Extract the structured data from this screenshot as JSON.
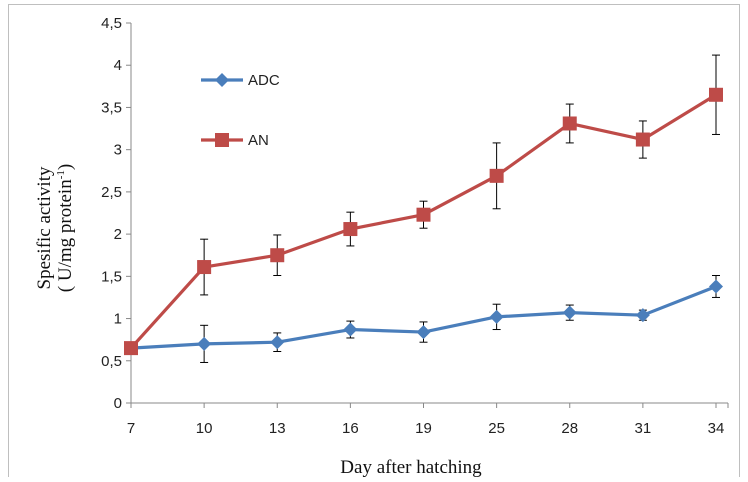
{
  "chart_data": {
    "type": "line",
    "title": "",
    "xlabel": "Day after hatching",
    "ylabel_line1": "Spesific activity",
    "ylabel_line2": "( U/mg protein",
    "ylabel_sup": "-1",
    "ylabel_close": ")",
    "categories": [
      "7",
      "10",
      "13",
      "16",
      "19",
      "25",
      "28",
      "31",
      "34"
    ],
    "ylim": [
      0,
      4.5
    ],
    "yticks": [
      "0",
      "0,5",
      "1",
      "1,5",
      "2",
      "2,5",
      "3",
      "3,5",
      "4",
      "4,5"
    ],
    "grid": false,
    "legend_position": "top-left",
    "series": [
      {
        "name": "ADC",
        "marker": "diamond",
        "color": "#4a7ebb",
        "values": [
          0.65,
          0.7,
          0.72,
          0.87,
          0.84,
          1.02,
          1.07,
          1.04,
          1.38
        ],
        "errors": [
          0.03,
          0.22,
          0.11,
          0.1,
          0.12,
          0.15,
          0.09,
          0.06,
          0.13
        ]
      },
      {
        "name": "AN",
        "marker": "square",
        "color": "#be4b48",
        "values": [
          0.65,
          1.61,
          1.75,
          2.06,
          2.23,
          2.69,
          3.31,
          3.12,
          3.65
        ],
        "errors": [
          0.03,
          0.33,
          0.24,
          0.2,
          0.16,
          0.39,
          0.23,
          0.22,
          0.47
        ]
      }
    ]
  }
}
